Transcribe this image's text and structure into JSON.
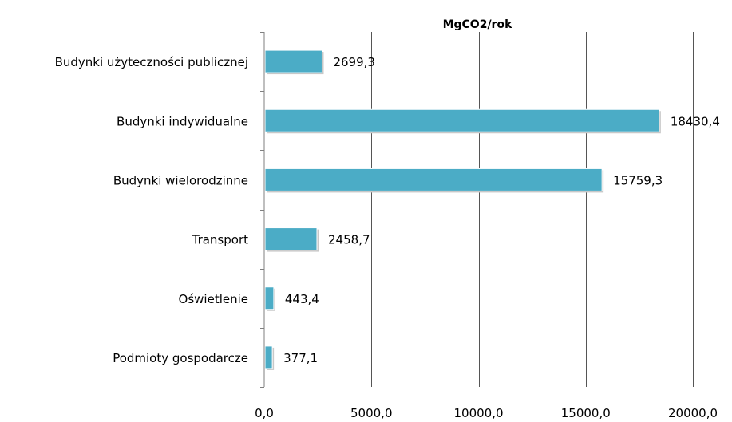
{
  "chart_data": {
    "type": "bar",
    "orientation": "horizontal",
    "title": "MgCO2/rok",
    "categories": [
      "Budynki użyteczności publicznej",
      "Budynki indywidualne",
      "Budynki wielorodzinne",
      "Transport",
      "Oświetlenie",
      "Podmioty gospodarcze"
    ],
    "values": [
      2699.3,
      18430.4,
      15759.3,
      2458.7,
      443.4,
      377.1
    ],
    "data_labels": [
      "2699,3",
      "18430,4",
      "15759,3",
      "2458,7",
      "443,4",
      "377,1"
    ],
    "x_ticks": [
      "0,0",
      "5000,0",
      "10000,0",
      "15000,0",
      "20000,0"
    ],
    "xlim": [
      0,
      20000
    ],
    "grid": "vertical major gridlines",
    "legend": "none",
    "bar_color": "#4bacc6"
  }
}
